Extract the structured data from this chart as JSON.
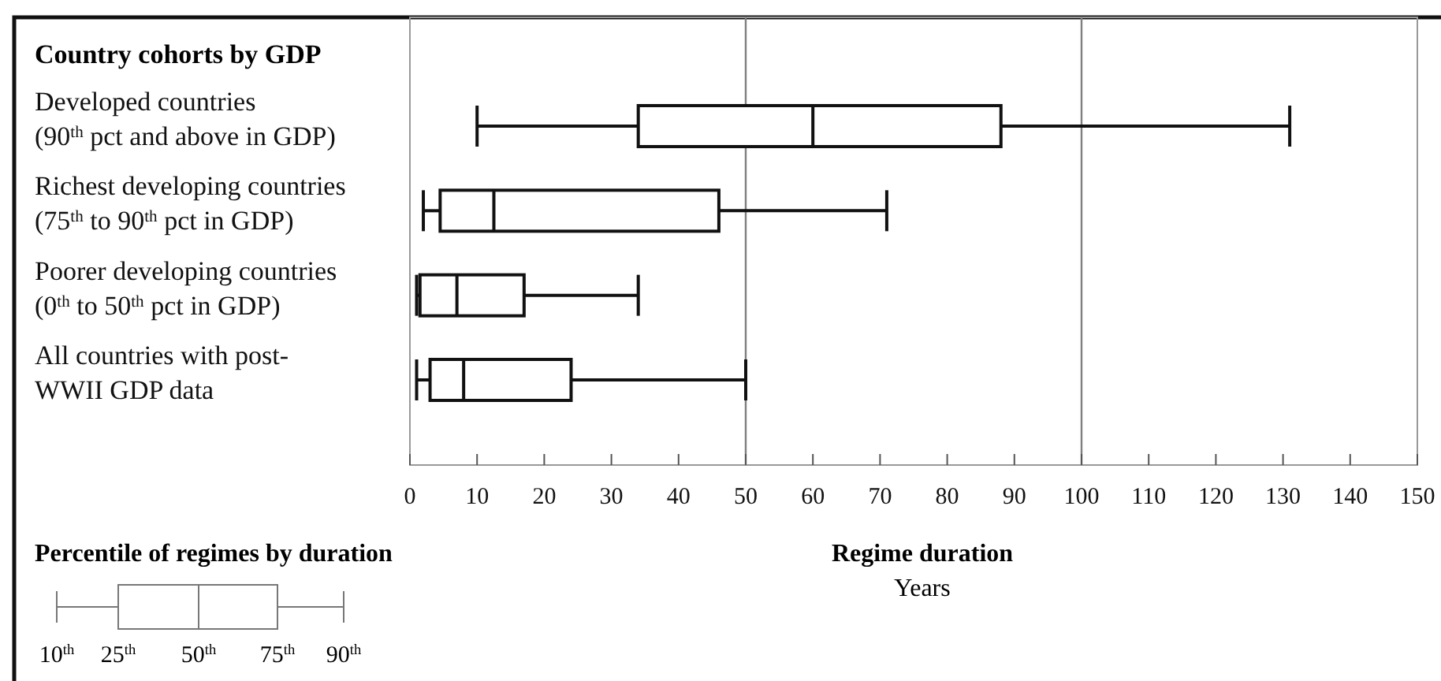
{
  "chart_data": {
    "type": "box",
    "orientation": "horizontal",
    "ylabel": "Country cohorts by GDP",
    "xlabel": "Regime duration",
    "categories": [
      "Developed countries\n(90$^{th}$ pct and above in GDP)",
      "Richest developing countries\n(75$^{th}$ to 90$^{th}$ pct in GDP)",
      "Poorer developing countries\n(0$^{th}$ to 50$^{th}$ pct in GDP)",
      "All countries with post-\nWWII GDP data"
    ],
    "boxes": [
      {
        "low": 10,
        "q1": 34,
        "median": 60,
        "q3": 88,
        "high": 131
      },
      {
        "low": 2,
        "q1": 4.5,
        "median": 12.5,
        "q3": 46,
        "high": 71
      },
      {
        "low": 1,
        "q1": 1.5,
        "median": 7,
        "q3": 17,
        "high": 34
      },
      {
        "low": 1,
        "q1": 3,
        "median": 8,
        "q3": 24,
        "high": 50
      }
    ],
    "xlim": [
      0,
      150
    ],
    "xticks": [
      0,
      10,
      20,
      30,
      40,
      50,
      60,
      70,
      80,
      90,
      100,
      110,
      120,
      130,
      140,
      150
    ],
    "ref_lines": [
      {
        "axis": "x",
        "value": 50,
        "color": "#808080"
      },
      {
        "axis": "x",
        "value": 100,
        "color": "#808080"
      }
    ],
    "annotations": [
      "Years",
      "Percentile  of regimes by duration",
      "10$^{th}$",
      "25$^{th}$",
      "50$^{th}$",
      "75$^{th}$",
      "90$^{th}$"
    ]
  }
}
